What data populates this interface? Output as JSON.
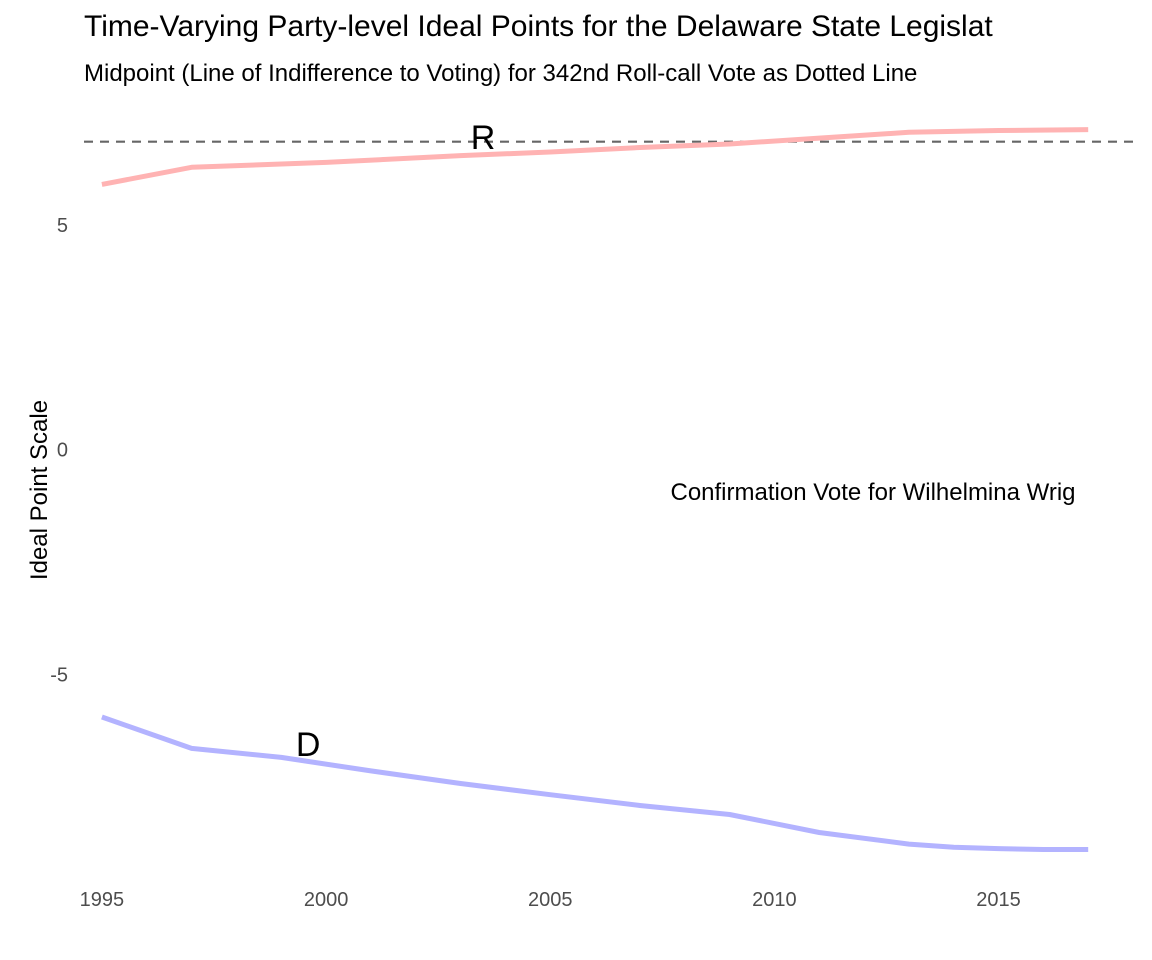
{
  "chart_data": {
    "type": "line",
    "title": "Time-Varying Party-level Ideal Points for the Delaware State Legislat",
    "subtitle": "Midpoint (Line of Indifference to Voting) for 342nd Roll-call Vote as Dotted Line",
    "xlabel": "",
    "ylabel": "Ideal Point Scale",
    "xlim": [
      1994.6,
      2018.2
    ],
    "ylim": [
      -9.4,
      7.6
    ],
    "xticks": [
      1995,
      2000,
      2005,
      2010,
      2015
    ],
    "yticks": [
      5,
      0,
      -5
    ],
    "grid": false,
    "legend": "none",
    "series": [
      {
        "name": "R",
        "color": "#ffb3b3",
        "x": [
          1995,
          1997,
          2000,
          2003,
          2005,
          2007,
          2009,
          2011,
          2013,
          2015,
          2017
        ],
        "y": [
          5.9,
          6.28,
          6.39,
          6.54,
          6.62,
          6.72,
          6.8,
          6.93,
          7.06,
          7.1,
          7.12
        ]
      },
      {
        "name": "D",
        "color": "#b3b3ff",
        "x": [
          1995,
          1997,
          1999,
          2001,
          2003,
          2005,
          2007,
          2009,
          2011,
          2013,
          2014,
          2015,
          2016,
          2017
        ],
        "y": [
          -5.95,
          -6.65,
          -6.85,
          -7.15,
          -7.43,
          -7.68,
          -7.92,
          -8.12,
          -8.52,
          -8.78,
          -8.85,
          -8.88,
          -8.9,
          -8.9
        ]
      }
    ],
    "series_labels": [
      {
        "text": "R",
        "x": 2003.5,
        "y": 6.95
      },
      {
        "text": "D",
        "x": 1999.6,
        "y": -6.55
      }
    ],
    "cutpoint": {
      "y": 6.85,
      "style": "dashed",
      "color": "#666666"
    },
    "annotation": {
      "text": "Confirmation Vote for Wilhelmina Wrig",
      "x": 2012.2,
      "y": -0.95
    }
  }
}
